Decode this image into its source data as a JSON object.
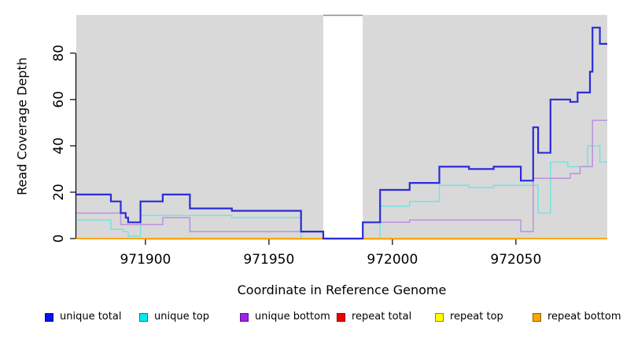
{
  "chart_data": {
    "type": "line",
    "step": "after",
    "title": "",
    "xlabel": "Coordinate in Reference Genome",
    "ylabel": "Read Coverage Depth",
    "x_range": [
      971872,
      972087
    ],
    "y_range": [
      0,
      96.5
    ],
    "x_ticks": [
      971900,
      971950,
      972000,
      972050
    ],
    "y_ticks": [
      0,
      20,
      40,
      60,
      80
    ],
    "plot_bg": "#d9d9d9",
    "grid": false,
    "legend_position": "bottom",
    "gap_region": {
      "start": 971972,
      "end": 971988,
      "fill": "#ffffff",
      "edge": "#8c8c8c"
    },
    "draw_order": [
      1,
      2,
      3,
      4,
      5,
      0
    ],
    "series": [
      {
        "name": "unique total",
        "legend_color": "#0f0fee",
        "line_color": "#2b2bd8",
        "line_width": 2.2,
        "points": [
          [
            971872,
            19
          ],
          [
            971886,
            16
          ],
          [
            971890,
            11
          ],
          [
            971892,
            9
          ],
          [
            971893,
            7
          ],
          [
            971898,
            16
          ],
          [
            971907,
            19
          ],
          [
            971918,
            13
          ],
          [
            971935,
            12
          ],
          [
            971963,
            3
          ],
          [
            971972,
            0
          ],
          [
            971988,
            7
          ],
          [
            971995,
            21
          ],
          [
            972007,
            24
          ],
          [
            972019,
            31
          ],
          [
            972031,
            30
          ],
          [
            972041,
            31
          ],
          [
            972052,
            25
          ],
          [
            972057,
            48
          ],
          [
            972059,
            37
          ],
          [
            972064,
            60
          ],
          [
            972072,
            59
          ],
          [
            972075,
            63
          ],
          [
            972080,
            72
          ],
          [
            972081,
            91
          ],
          [
            972084,
            84
          ]
        ]
      },
      {
        "name": "unique top",
        "legend_color": "#00ecec",
        "line_color": "#74e2e2",
        "line_width": 1.5,
        "points": [
          [
            971872,
            8
          ],
          [
            971886,
            4
          ],
          [
            971891,
            3
          ],
          [
            971893,
            1
          ],
          [
            971898,
            10
          ],
          [
            971935,
            9
          ],
          [
            971963,
            0
          ],
          [
            971995,
            14
          ],
          [
            972007,
            16
          ],
          [
            972019,
            23
          ],
          [
            972031,
            22
          ],
          [
            972041,
            23
          ],
          [
            972059,
            11
          ],
          [
            972064,
            33
          ],
          [
            972071,
            31
          ],
          [
            972079,
            40
          ],
          [
            972084,
            33
          ]
        ]
      },
      {
        "name": "unique bottom",
        "legend_color": "#a020f0",
        "line_color": "#bb91dd",
        "line_width": 1.5,
        "points": [
          [
            971872,
            11
          ],
          [
            971890,
            6
          ],
          [
            971907,
            9
          ],
          [
            971918,
            3
          ],
          [
            971972,
            0
          ],
          [
            971988,
            7
          ],
          [
            972007,
            8
          ],
          [
            972052,
            3
          ],
          [
            972057,
            26
          ],
          [
            972072,
            28
          ],
          [
            972076,
            31
          ],
          [
            972081,
            51
          ]
        ]
      },
      {
        "name": "repeat total",
        "legend_color": "#ee0000",
        "line_color": "#ee0000",
        "line_width": 1.5,
        "points": [
          [
            971872,
            0
          ]
        ]
      },
      {
        "name": "repeat top",
        "legend_color": "#ffff00",
        "line_color": "#ffff00",
        "line_width": 1.5,
        "points": [
          [
            971872,
            0
          ]
        ]
      },
      {
        "name": "repeat bottom",
        "legend_color": "#ffa500",
        "line_color": "#ffa500",
        "line_width": 1.9,
        "points": [
          [
            971872,
            0
          ]
        ]
      }
    ]
  }
}
